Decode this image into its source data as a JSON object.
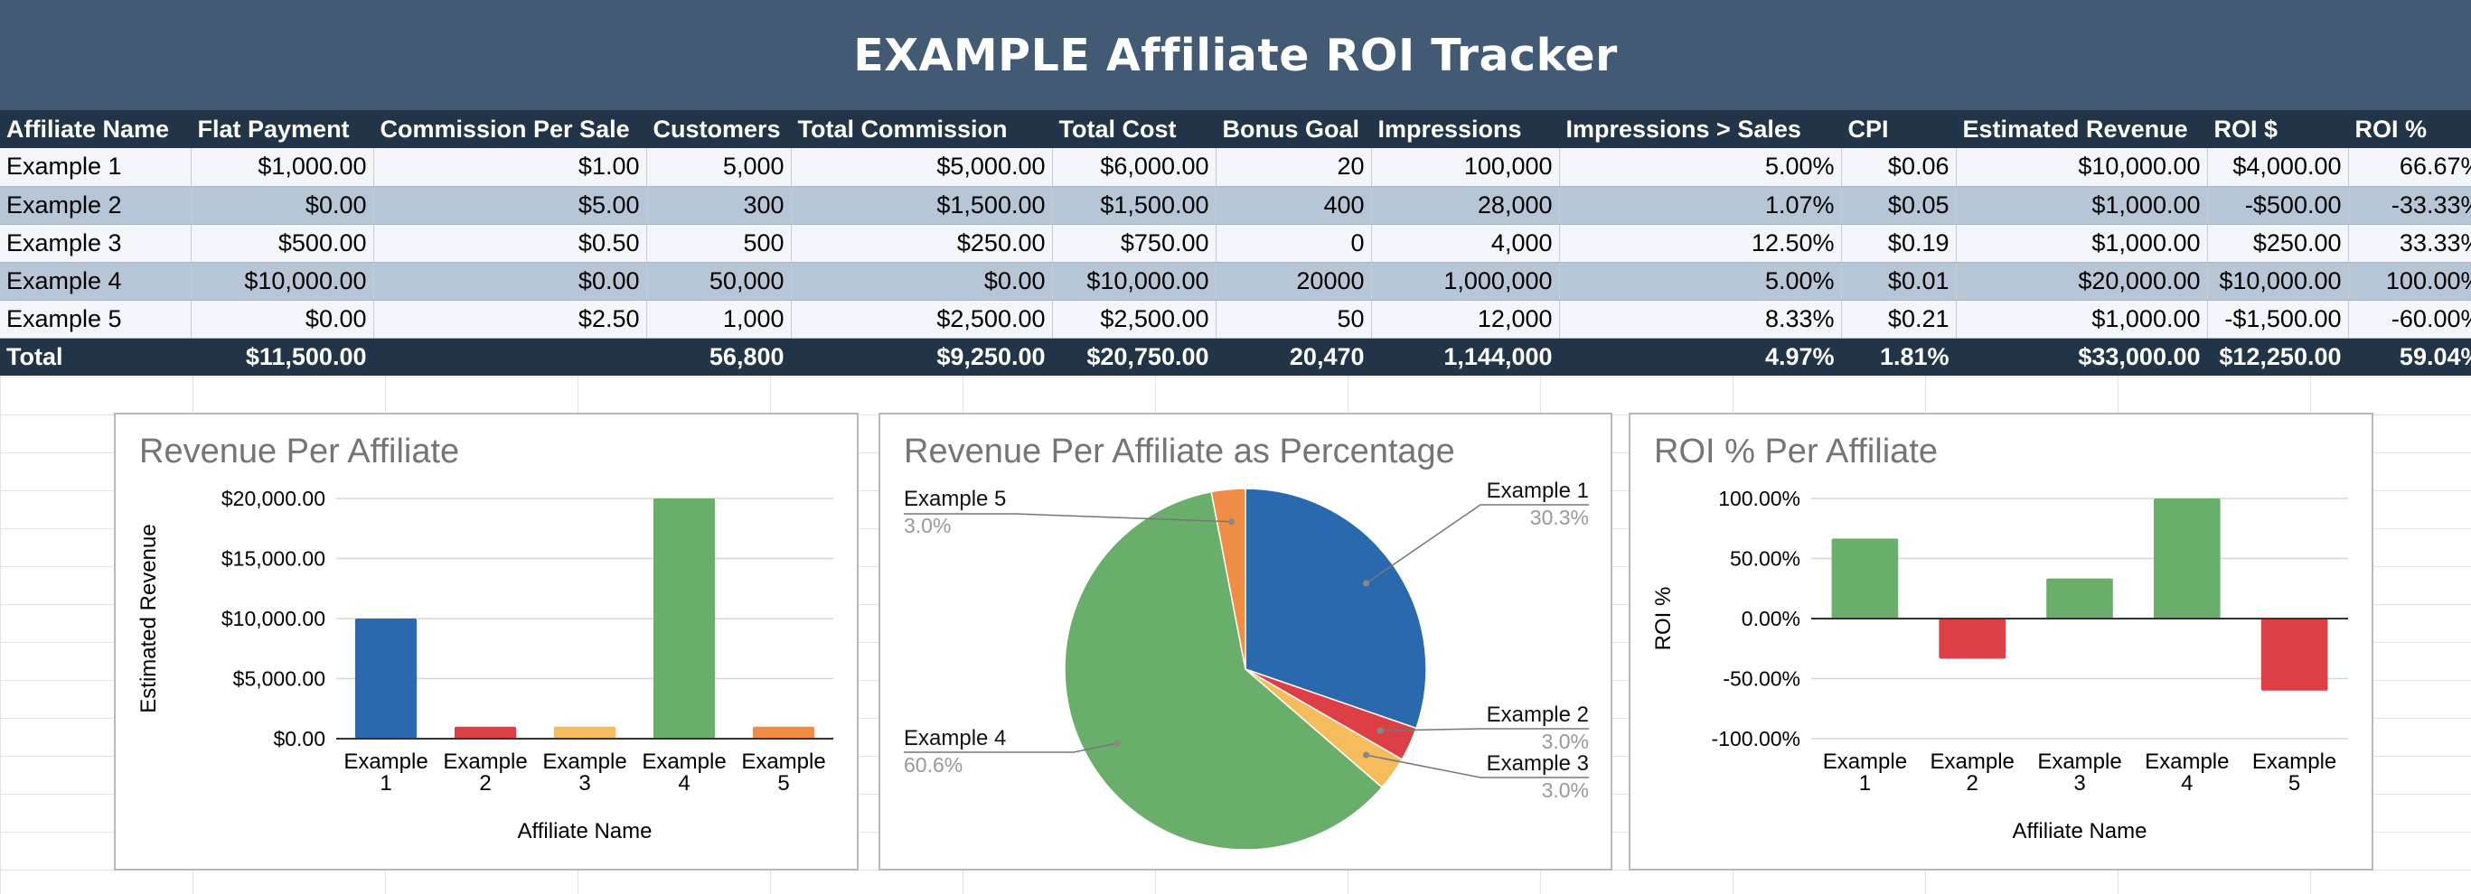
{
  "header": {
    "title": "EXAMPLE Affiliate ROI Tracker"
  },
  "table": {
    "columns": [
      "Affiliate Name",
      "Flat Payment",
      "Commission Per Sale",
      "Customers",
      "Total Commission",
      "Total Cost",
      "Bonus Goal",
      "Impressions",
      "Impressions > Sales",
      "CPI",
      "Estimated Revenue",
      "ROI $",
      "ROI %"
    ],
    "rows": [
      [
        "Example 1",
        "$1,000.00",
        "$1.00",
        "5,000",
        "$5,000.00",
        "$6,000.00",
        "20",
        "100,000",
        "5.00%",
        "$0.06",
        "$10,000.00",
        "$4,000.00",
        "66.67%"
      ],
      [
        "Example 2",
        "$0.00",
        "$5.00",
        "300",
        "$1,500.00",
        "$1,500.00",
        "400",
        "28,000",
        "1.07%",
        "$0.05",
        "$1,000.00",
        "-$500.00",
        "-33.33%"
      ],
      [
        "Example 3",
        "$500.00",
        "$0.50",
        "500",
        "$250.00",
        "$750.00",
        "0",
        "4,000",
        "12.50%",
        "$0.19",
        "$1,000.00",
        "$250.00",
        "33.33%"
      ],
      [
        "Example 4",
        "$10,000.00",
        "$0.00",
        "50,000",
        "$0.00",
        "$10,000.00",
        "20000",
        "1,000,000",
        "5.00%",
        "$0.01",
        "$20,000.00",
        "$10,000.00",
        "100.00%"
      ],
      [
        "Example 5",
        "$0.00",
        "$2.50",
        "1,000",
        "$2,500.00",
        "$2,500.00",
        "50",
        "12,000",
        "8.33%",
        "$0.21",
        "$1,000.00",
        "-$1,500.00",
        "-60.00%"
      ]
    ],
    "total": [
      "Total",
      "$11,500.00",
      "",
      "56,800",
      "$9,250.00",
      "$20,750.00",
      "20,470",
      "1,144,000",
      "4.97%",
      "1.81%",
      "$33,000.00",
      "$12,250.00",
      "59.04%"
    ]
  },
  "colors": {
    "blue": "#2b69ae",
    "red": "#dc3f45",
    "yellow": "#f6bb5d",
    "green": "#6aae6c",
    "orange": "#ef8c45"
  },
  "chart_data": [
    {
      "type": "bar",
      "title": "Revenue Per Affiliate",
      "xlabel": "Affiliate Name",
      "ylabel": "Estimated Revenue",
      "categories": [
        "Example\n1",
        "Example\n2",
        "Example\n3",
        "Example\n4",
        "Example\n5"
      ],
      "values": [
        10000,
        1000,
        1000,
        20000,
        1000
      ],
      "bar_colors": [
        "#2b69ae",
        "#dc3f45",
        "#f6bb5d",
        "#6aae6c",
        "#ef8c45"
      ],
      "yticks": [
        0,
        5000,
        10000,
        15000,
        20000
      ],
      "ytick_labels": [
        "$0.00",
        "$5,000.00",
        "$10,000.00",
        "$15,000.00",
        "$20,000.00"
      ],
      "ylim": [
        0,
        20000
      ],
      "grid": true,
      "legend": "none"
    },
    {
      "type": "pie",
      "title": "Revenue Per Affiliate as Percentage",
      "labels": [
        "Example 1",
        "Example 2",
        "Example 3",
        "Example 4",
        "Example 5"
      ],
      "values": [
        10000,
        1000,
        1000,
        20000,
        1000
      ],
      "percent_labels": [
        "30.3%",
        "3.0%",
        "3.0%",
        "60.6%",
        "3.0%"
      ],
      "colors": [
        "#2b69ae",
        "#dc3f45",
        "#f6bb5d",
        "#6aae6c",
        "#ef8c45"
      ],
      "legend": "labeled"
    },
    {
      "type": "bar",
      "title": "ROI % Per Affiliate",
      "xlabel": "Affiliate Name",
      "ylabel": "ROI %",
      "categories": [
        "Example\n1",
        "Example\n2",
        "Example\n3",
        "Example\n4",
        "Example\n5"
      ],
      "values": [
        66.67,
        -33.33,
        33.33,
        100,
        -60
      ],
      "positive_color": "#6aae6c",
      "negative_color": "#dc3f45",
      "yticks": [
        -100,
        -50,
        0,
        50,
        100
      ],
      "ytick_labels": [
        "-100.00%",
        "-50.00%",
        "0.00%",
        "50.00%",
        "100.00%"
      ],
      "ylim": [
        -100,
        100
      ],
      "grid": true,
      "legend": "none"
    }
  ]
}
